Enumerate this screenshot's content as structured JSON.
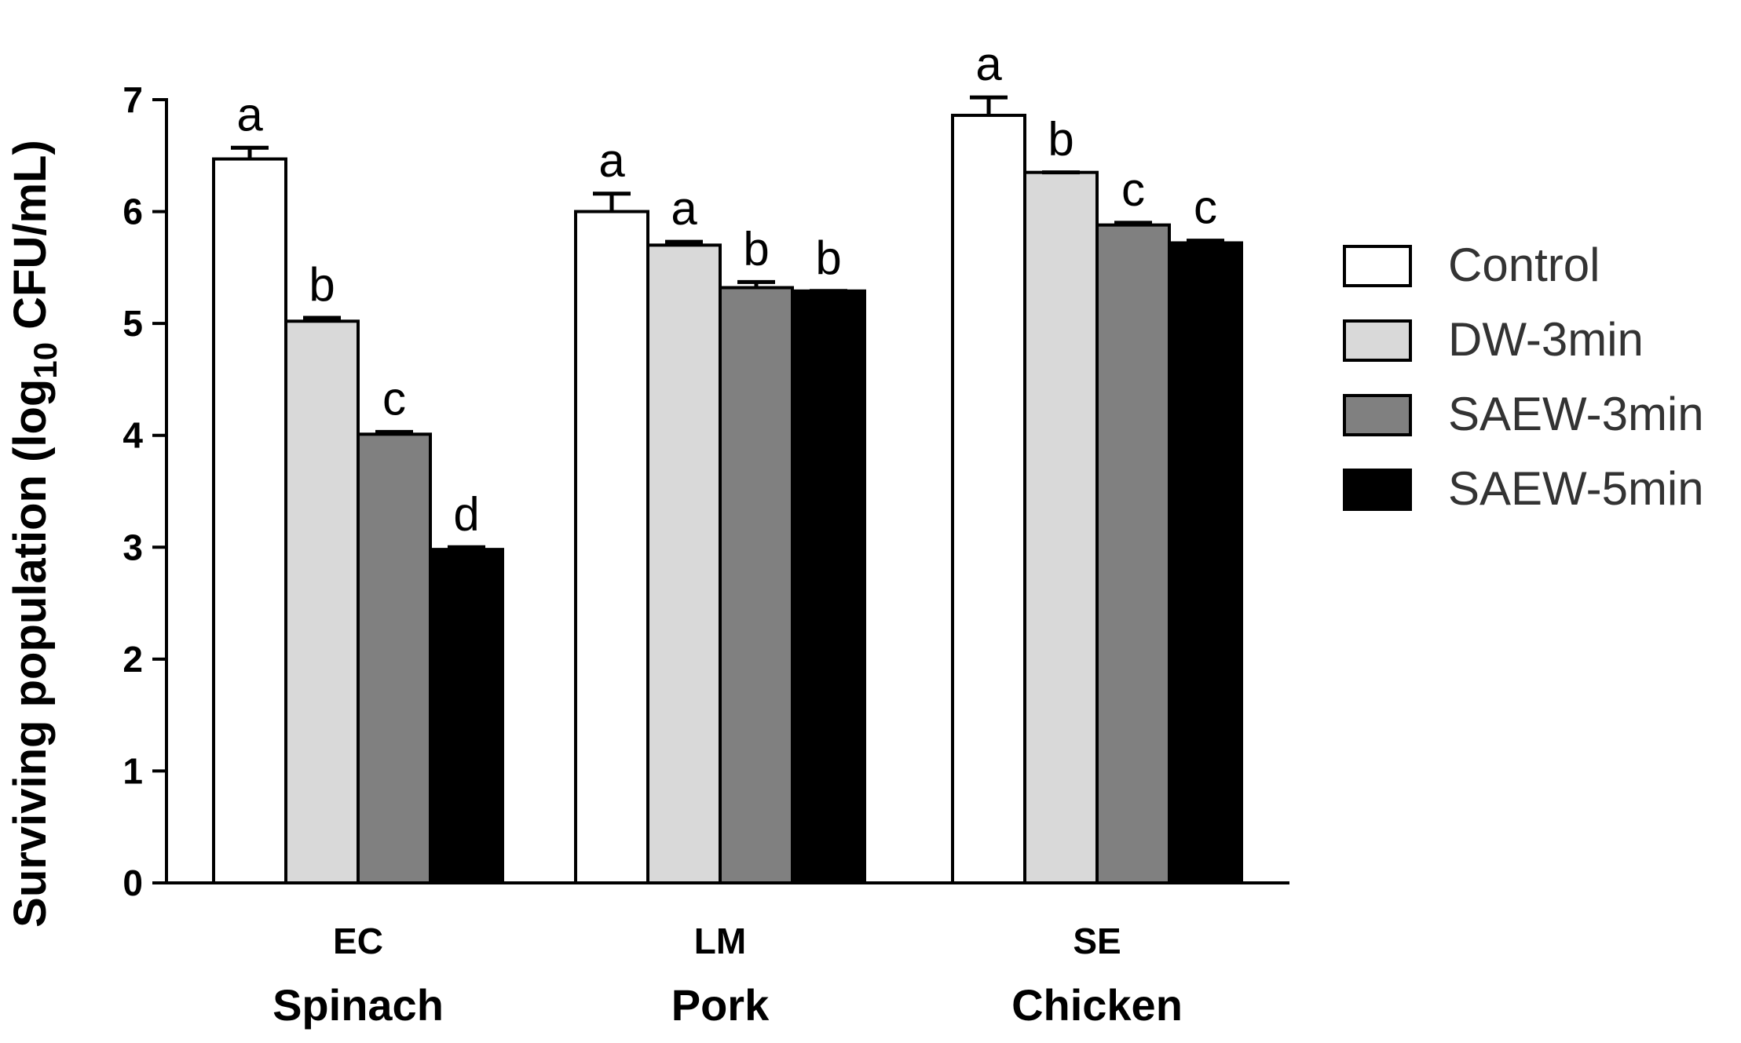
{
  "chart_data": {
    "type": "bar",
    "categories": [
      "EC",
      "LM",
      "SE"
    ],
    "group_labels": [
      "Spinach",
      "Pork",
      "Chicken"
    ],
    "ylabel_parts": [
      "Surviving population (log",
      "10",
      " CFU/mL)"
    ],
    "ylim": [
      0,
      7
    ],
    "yticks": [
      0,
      1,
      2,
      3,
      4,
      5,
      6,
      7
    ],
    "legend_position": "right",
    "grid": false,
    "series": [
      {
        "name": "Control",
        "color": "#ffffff",
        "values": [
          6.47,
          6.0,
          6.86
        ],
        "errors": [
          0.1,
          0.16,
          0.16
        ],
        "letters": [
          "a",
          "a",
          "a"
        ]
      },
      {
        "name": "DW-3min",
        "color": "#d9d9d9",
        "values": [
          5.02,
          5.7,
          6.35
        ],
        "errors": [
          0.03,
          0.03,
          0.0
        ],
        "letters": [
          "b",
          "a",
          "b"
        ]
      },
      {
        "name": "SAEW-3min",
        "color": "#808080",
        "values": [
          4.01,
          5.32,
          5.88
        ],
        "errors": [
          0.02,
          0.05,
          0.02
        ],
        "letters": [
          "c",
          "b",
          "c"
        ]
      },
      {
        "name": "SAEW-5min",
        "color": "#000000",
        "values": [
          2.98,
          5.29,
          5.72
        ],
        "errors": [
          0.02,
          0.0,
          0.02
        ],
        "letters": [
          "d",
          "b",
          "c"
        ]
      }
    ]
  }
}
